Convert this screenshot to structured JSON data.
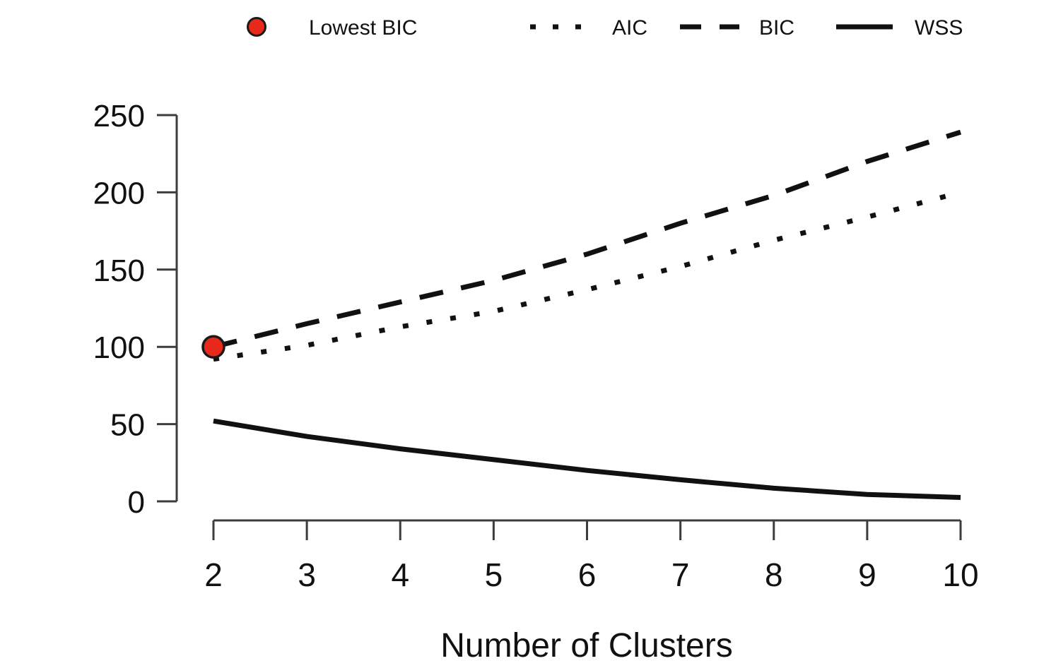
{
  "chart_data": {
    "type": "line",
    "title": "",
    "xlabel": "Number of Clusters",
    "ylabel": "",
    "x": [
      2,
      3,
      4,
      5,
      6,
      7,
      8,
      9,
      10
    ],
    "xlim": [
      2,
      10
    ],
    "ylim": [
      0,
      250
    ],
    "xticks": [
      2,
      3,
      4,
      5,
      6,
      7,
      8,
      9,
      10
    ],
    "yticks": [
      0,
      50,
      100,
      150,
      200,
      250
    ],
    "grid": false,
    "legend_position": "top",
    "series": [
      {
        "name": "AIC",
        "style": "dotted",
        "color": "#111111",
        "values": [
          92,
          101,
          113,
          123,
          137,
          152,
          169,
          184,
          200
        ]
      },
      {
        "name": "BIC",
        "style": "dashed",
        "color": "#111111",
        "values": [
          100,
          115,
          129,
          143,
          160,
          180,
          198,
          220,
          239
        ]
      },
      {
        "name": "WSS",
        "style": "solid",
        "color": "#111111",
        "values": [
          52,
          42,
          34,
          27,
          20,
          14,
          8.5,
          4.5,
          2.5
        ]
      }
    ],
    "highlight_point": {
      "name": "Lowest BIC",
      "x": 2,
      "y": 100,
      "fill": "#e8291c",
      "stroke": "#1a1a1a"
    },
    "legend": [
      {
        "label": "Lowest BIC",
        "marker": "point"
      },
      {
        "label": "AIC",
        "marker": "dotted"
      },
      {
        "label": "BIC",
        "marker": "dashed"
      },
      {
        "label": "WSS",
        "marker": "solid"
      }
    ],
    "colors": {
      "line": "#111111",
      "axis": "#3d3d3d",
      "highlight_fill": "#e8291c",
      "highlight_stroke": "#1a1a1a"
    }
  }
}
